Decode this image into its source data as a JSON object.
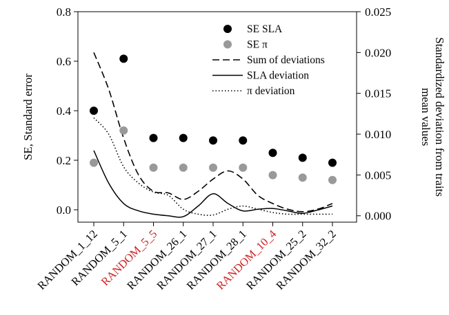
{
  "chart_data": {
    "type": "scatter",
    "categories": [
      "RANDOM_1_12",
      "RANDOM_5_1",
      "RANDOM_5_5",
      "RANDOM_26_1",
      "RANDOM_27_1",
      "RANDOM_28_1",
      "RANDOM_10_4",
      "RANDOM_25_2",
      "RANDOM_32_2"
    ],
    "highlighted_categories": [
      "RANDOM_5_5",
      "RANDOM_10_4"
    ],
    "highlight_color": "#cc2222",
    "y_left": {
      "label": "SE, Standard error",
      "ylim": [
        -0.05,
        0.8
      ],
      "ticks": [
        0.0,
        0.2,
        0.4,
        0.6,
        0.8
      ],
      "tick_labels": [
        "0.0",
        "0.2",
        "0.4",
        "0.6",
        "0.8"
      ]
    },
    "y_right": {
      "label_lines": [
        "Standardized deviation from traits",
        "mean values"
      ],
      "ylim": [
        -0.00078,
        0.025
      ],
      "ticks": [
        0.0,
        0.005,
        0.01,
        0.015,
        0.02,
        0.025
      ],
      "tick_labels": [
        "0.000",
        "0.005",
        "0.010",
        "0.015",
        "0.020",
        "0.025"
      ]
    },
    "scatter_series": [
      {
        "name": "SE SLA",
        "axis": "left",
        "color": "#000000",
        "values": [
          0.4,
          0.61,
          0.29,
          0.29,
          0.28,
          0.28,
          0.23,
          0.21,
          0.19
        ]
      },
      {
        "name": "SE π",
        "axis": "left",
        "color": "#999999",
        "values": [
          0.19,
          0.32,
          0.17,
          0.17,
          0.17,
          0.17,
          0.14,
          0.13,
          0.12
        ]
      }
    ],
    "line_series": [
      {
        "name": "Sum of deviations",
        "axis": "right",
        "style": "dashed",
        "x": [
          0,
          0.5,
          1,
          1.5,
          2,
          2.5,
          3,
          3.5,
          4,
          4.5,
          5,
          5.5,
          6,
          6.5,
          7,
          7.5,
          8
        ],
        "y": [
          0.02,
          0.0155,
          0.0095,
          0.005,
          0.003,
          0.0028,
          0.002,
          0.003,
          0.0045,
          0.0055,
          0.0045,
          0.0025,
          0.0015,
          0.0008,
          0.0005,
          0.0008,
          0.0015
        ]
      },
      {
        "name": "SLA deviation",
        "axis": "right",
        "style": "solid",
        "x": [
          0,
          0.5,
          1,
          1.5,
          2,
          2.5,
          3,
          3.5,
          4,
          4.5,
          5,
          5.5,
          6,
          6.5,
          7,
          7.5,
          8
        ],
        "y": [
          0.008,
          0.004,
          0.0015,
          0.0006,
          0.0002,
          0.0,
          -0.0001,
          0.0012,
          0.0027,
          0.0015,
          0.0006,
          0.0008,
          0.0009,
          0.0006,
          0.0003,
          0.0007,
          0.0012
        ]
      },
      {
        "name": "π deviation",
        "axis": "right",
        "style": "dotted",
        "x": [
          0,
          0.5,
          1,
          1.5,
          2,
          2.5,
          3,
          3.5,
          4,
          4.5,
          5,
          5.5,
          6,
          6.5,
          7,
          7.5,
          8
        ],
        "y": [
          0.012,
          0.01,
          0.006,
          0.004,
          0.0029,
          0.0025,
          0.0008,
          0.0002,
          0.0001,
          0.0008,
          0.0012,
          0.0008,
          0.0004,
          0.0002,
          0.0002,
          0.0002,
          0.0002
        ]
      }
    ],
    "legend": {
      "placement": "top-right",
      "entries": [
        {
          "label": "SE SLA",
          "kind": "dot",
          "color": "#000000"
        },
        {
          "label": "SE π",
          "kind": "dot",
          "color": "#999999"
        },
        {
          "label": "Sum of deviations",
          "kind": "line",
          "style": "dashed"
        },
        {
          "label": "SLA deviation",
          "kind": "line",
          "style": "solid"
        },
        {
          "label": "π deviation",
          "kind": "line",
          "style": "dotted"
        }
      ]
    },
    "grid": false
  }
}
